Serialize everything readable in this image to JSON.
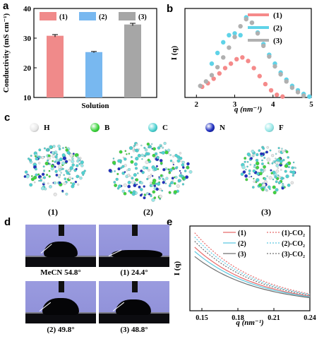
{
  "panels": {
    "a": "a",
    "b": "b",
    "c": "c",
    "d": "d",
    "e": "e"
  },
  "chart_data": [
    {
      "panel": "a",
      "type": "bar",
      "categories": [
        "(1)",
        "(2)",
        "(3)"
      ],
      "values": [
        30.8,
        25.3,
        34.6
      ],
      "errors": [
        0.4,
        0.2,
        0.4
      ],
      "colors": [
        "#f08a8a",
        "#78b8f0",
        "#a6a6a6"
      ],
      "legend": [
        "(1)",
        "(2)",
        "(3)"
      ],
      "xlabel": "Solution",
      "ylabel": "Conductivity (mS cm⁻¹)",
      "ylim": [
        10,
        40
      ],
      "yticks": [
        "10",
        "20",
        "30",
        "40"
      ]
    },
    {
      "panel": "b",
      "type": "scatter",
      "xlabel": "q (nm⁻¹)",
      "ylabel": "I (q)",
      "xlim": [
        1.7,
        5.0
      ],
      "ylim": [
        0,
        1
      ],
      "xticks": [
        "2",
        "3",
        "4",
        "5"
      ],
      "legend": [
        "(1)",
        "(2)",
        "(3)"
      ],
      "series": [
        {
          "name": "(1)",
          "color": "#f58a8a",
          "x": [
            2.15,
            2.3,
            2.45,
            2.6,
            2.75,
            2.9,
            3.05,
            3.2,
            3.35,
            3.5,
            3.65,
            3.8,
            3.95,
            4.1,
            4.25
          ],
          "y": [
            0.12,
            0.16,
            0.21,
            0.27,
            0.33,
            0.38,
            0.43,
            0.45,
            0.41,
            0.33,
            0.24,
            0.15,
            0.08,
            0.03,
            0.01
          ]
        },
        {
          "name": "(2)",
          "color": "#5fd3e8",
          "x": [
            2.4,
            2.55,
            2.7,
            2.85,
            3.0,
            3.15,
            3.3,
            3.45,
            3.6,
            3.75,
            3.9,
            4.05,
            4.2,
            4.35,
            4.5,
            4.65,
            4.8,
            4.95
          ],
          "y": [
            0.38,
            0.5,
            0.62,
            0.7,
            0.72,
            0.7,
            0.9,
            0.84,
            0.73,
            0.6,
            0.48,
            0.38,
            0.28,
            0.2,
            0.13,
            0.08,
            0.04,
            0.01
          ]
        },
        {
          "name": "(3)",
          "color": "#b0b0b0",
          "x": [
            2.1,
            2.25,
            2.4,
            2.55,
            2.7,
            2.85,
            3.0,
            3.15,
            3.3,
            3.45,
            3.6,
            3.75,
            3.9,
            4.05,
            4.2,
            4.35,
            4.5,
            4.65,
            4.8
          ],
          "y": [
            0.13,
            0.18,
            0.25,
            0.34,
            0.45,
            0.56,
            0.68,
            0.8,
            0.88,
            0.84,
            0.72,
            0.58,
            0.46,
            0.35,
            0.26,
            0.18,
            0.11,
            0.06,
            0.02
          ]
        }
      ]
    },
    {
      "panel": "e",
      "type": "line",
      "xlabel": "q (nm⁻¹)",
      "ylabel": "I (q)",
      "xlim": [
        0.14,
        0.24
      ],
      "ylim": [
        0,
        1
      ],
      "xticks": [
        "0.15",
        "0.18",
        "0.21",
        "0.24"
      ],
      "series": [
        {
          "name": "(1)",
          "color": "#e86a6a",
          "dashed": false,
          "k": 0.69
        },
        {
          "name": "(1)-CO₂",
          "color": "#e86a6a",
          "dashed": true,
          "k": 0.86
        },
        {
          "name": "(2)",
          "color": "#5cc8e0",
          "dashed": false,
          "k": 0.64
        },
        {
          "name": "(2)-CO₂",
          "color": "#5cc8e0",
          "dashed": true,
          "k": 0.81
        },
        {
          "name": "(3)",
          "color": "#707070",
          "dashed": false,
          "k": 0.58
        },
        {
          "name": "(3)-CO₂",
          "color": "#707070",
          "dashed": true,
          "k": 0.76
        }
      ]
    }
  ],
  "panel_c": {
    "elements": [
      {
        "symbol": "H",
        "color": "#e8e8e8",
        "edge": "#9a9a9a"
      },
      {
        "symbol": "B",
        "color": "#3fd43f",
        "edge": "#1a8a1a"
      },
      {
        "symbol": "C",
        "color": "#4fd2d2",
        "edge": "#1a8a8a"
      },
      {
        "symbol": "N",
        "color": "#2030c0",
        "edge": "#0a1060"
      },
      {
        "symbol": "F",
        "color": "#9ae8e8",
        "edge": "#5aa8a8"
      }
    ],
    "labels": [
      "(1)",
      "(2)",
      "(3)"
    ]
  },
  "panel_d": {
    "photos": [
      {
        "caption": "MeCN 54.8°"
      },
      {
        "caption": "(1) 24.4°"
      },
      {
        "caption": "(2) 49.8°"
      },
      {
        "caption": "(3) 48.8°"
      }
    ]
  }
}
